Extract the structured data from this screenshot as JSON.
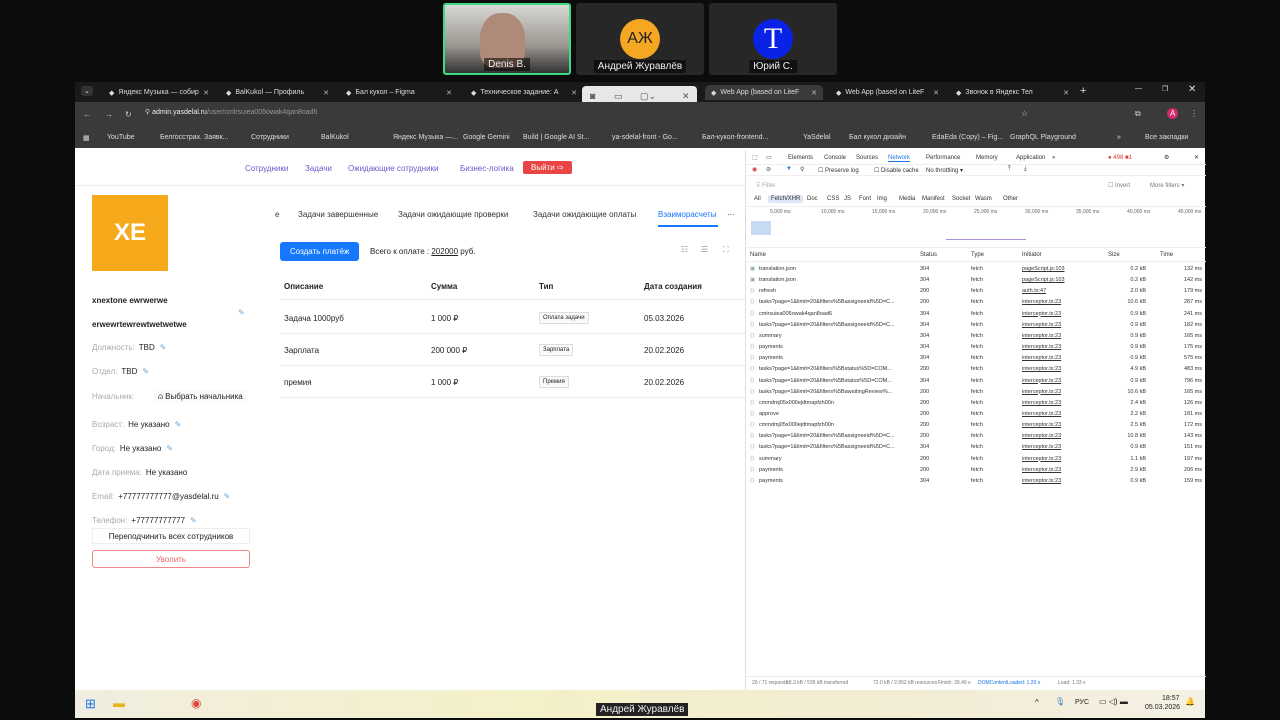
{
  "call": {
    "participants": [
      {
        "name": "Denis B.",
        "initials": ""
      },
      {
        "name": "Андрей Журавлёв",
        "initials": "АЖ",
        "color": "#f5a623"
      },
      {
        "name": "Юрий С.",
        "initials": "T",
        "color": "#0a22e6"
      }
    ],
    "speaker": "Андрей Журавлёв"
  },
  "browser": {
    "tabs": [
      {
        "label": "Яндекс Музыка — собир"
      },
      {
        "label": "BalKukol — Профиль"
      },
      {
        "label": "Бал кукол – Figma"
      },
      {
        "label": "Техническое задание: А"
      },
      {
        "label": "Web App (based on LiteF",
        "active": true
      },
      {
        "label": "Web App (based on LiteF"
      },
      {
        "label": "Звонок в Яндекс Тел"
      }
    ],
    "url_host": "admin.yasdelal.ru",
    "url_path": "/user/cmlrsuiea005owak4qan8oad6",
    "bookmarks": [
      "YouTube",
      "Белгосстрах. Заявк...",
      "Сотрудники",
      "BalKukol",
      "Яндекс Музыка —...",
      "Google Gemini",
      "Build | Google AI St...",
      "ya-sdelal-front - Go...",
      "Бал-кукол-frontend...",
      "YaSdelal",
      "Бал кукол дизайн",
      "EdaEda (Copy) – Fig...",
      "GraphQL Playground",
      "»",
      "Все закладки"
    ],
    "profile_initial": "A"
  },
  "app": {
    "nav": [
      "Сотрудники",
      "Задачи",
      "Ожидающие сотрудники",
      "Бизнес-логика"
    ],
    "logout": "Выйти",
    "avatar_initials": "XE",
    "avatar_color": "#f5a91b",
    "profile": {
      "name1": "xnextone ewrwerwe",
      "name2": "erwewrtewrewtwetwetwe",
      "fields": [
        {
          "label": "Должность:",
          "value": "TBD"
        },
        {
          "label": "Отдел:",
          "value": "TBD"
        },
        {
          "label": "Начальник:",
          "value": "Выбрать начальника"
        },
        {
          "label": "Возраст:",
          "value": "Не указано"
        },
        {
          "label": "Город:",
          "value": "Не указано"
        },
        {
          "label": "Дата приема:",
          "value": "Не указано"
        },
        {
          "label": "Email:",
          "value": "+77777777777@yasdelal.ru"
        },
        {
          "label": "Телефон:",
          "value": "+77777777777"
        }
      ],
      "reassign": "Переподчинить всех сотрудников",
      "fire": "Уволить"
    },
    "tabs": [
      "е",
      "Задачи завершенные",
      "Задачи ожидающие проверки",
      "Задачи ожидающие оплаты",
      "Взаиморасчеты",
      "···"
    ],
    "create_payment": "Создать платёж",
    "total_label": "Всего к оплате :",
    "total_value": "202000",
    "total_unit": "руб.",
    "columns": [
      "Описание",
      "Сумма",
      "Тип",
      "Дата создания"
    ],
    "rows": [
      [
        "Задача 1000руб",
        "1 000 ₽",
        "Оплата задачи",
        "05.03.2026"
      ],
      [
        "Зарплата",
        "200 000 ₽",
        "Зарплата",
        "20.02.2026"
      ],
      [
        "премия",
        "1 000 ₽",
        "Премия",
        "20.02.2026"
      ]
    ]
  },
  "devtools": {
    "tabs": [
      "Elements",
      "Console",
      "Sources",
      "Network",
      "Performance",
      "Memory",
      "Application",
      "»"
    ],
    "errors": "498",
    "warnings": "1",
    "preserve_log": "Preserve log",
    "disable_cache": "Disable cache",
    "throttling": "No throttling",
    "filter_placeholder": "Filter",
    "invert": "Invert",
    "more_filters": "More filters ▾",
    "filters": [
      "All",
      "Fetch/XHR",
      "Doc",
      "CSS",
      "JS",
      "Font",
      "Img",
      "Media",
      "Manifest",
      "Socket",
      "Wasm",
      "Other"
    ],
    "timeline": [
      "5,000 ms",
      "10,000 ms",
      "15,000 ms",
      "20,000 ms",
      "25,000 ms",
      "30,000 ms",
      "35,000 ms",
      "40,000 ms",
      "45,000 ms"
    ],
    "columns": [
      "Name",
      "Status",
      "Type",
      "Initiator",
      "Size",
      "Time"
    ],
    "requests": [
      [
        "translation.json",
        "304",
        "fetch",
        "pageScript.js:103",
        "0.2 kB",
        "132 ms"
      ],
      [
        "translation.json",
        "304",
        "fetch",
        "pageScript.js:103",
        "0.2 kB",
        "142 ms"
      ],
      [
        "refresh",
        "200",
        "fetch",
        "auth.ts:47",
        "2.0 kB",
        "179 ms"
      ],
      [
        "tasks?page=1&limit=20&filters%5Bassigneeid%5D=C...",
        "200",
        "fetch",
        "interceptor.ts:23",
        "10.6 kB",
        "287 ms"
      ],
      [
        "cmirsuiea005owak4qan8oad6",
        "304",
        "fetch",
        "interceptor.ts:23",
        "0.9 kB",
        "241 ms"
      ],
      [
        "tasks?page=1&limit=20&filters%5Bassigneeid%5D=C...",
        "304",
        "fetch",
        "interceptor.ts:23",
        "0.9 kB",
        "182 ms"
      ],
      [
        "summary",
        "304",
        "fetch",
        "interceptor.ts:23",
        "0.9 kB",
        "165 ms"
      ],
      [
        "payments",
        "304",
        "fetch",
        "interceptor.ts:23",
        "0.9 kB",
        "175 ms"
      ],
      [
        "payments",
        "304",
        "fetch",
        "interceptor.ts:23",
        "0.9 kB",
        "575 ms"
      ],
      [
        "tasks?page=1&limit=20&filters%5Bstatus%5D=COM...",
        "200",
        "fetch",
        "interceptor.ts:23",
        "4.9 kB",
        "483 ms"
      ],
      [
        "tasks?page=1&limit=20&filters%5Bstatus%5D=COM...",
        "304",
        "fetch",
        "interceptor.ts:23",
        "0.9 kB",
        "796 ms"
      ],
      [
        "tasks?page=1&limit=20&filters%5BawaitingReview%...",
        "200",
        "fetch",
        "interceptor.ts:23",
        "10.6 kB",
        "165 ms"
      ],
      [
        "cmmdmj05x000ejdtmapfzh00n",
        "200",
        "fetch",
        "interceptor.ts:23",
        "2.4 kB",
        "126 ms"
      ],
      [
        "approve",
        "200",
        "fetch",
        "interceptor.ts:23",
        "2.2 kB",
        "181 ms"
      ],
      [
        "cmmdmj05x000ejdtmapfzh00n",
        "200",
        "fetch",
        "interceptor.ts:23",
        "2.5 kB",
        "172 ms"
      ],
      [
        "tasks?page=1&limit=20&filters%5Bassigneeid%5D=C...",
        "200",
        "fetch",
        "interceptor.ts:23",
        "10.8 kB",
        "143 ms"
      ],
      [
        "tasks?page=1&limit=20&filters%5Bassigneeid%5D=C...",
        "304",
        "fetch",
        "interceptor.ts:23",
        "0.9 kB",
        "151 ms"
      ],
      [
        "summary",
        "200",
        "fetch",
        "interceptor.ts:23",
        "1.1 kB",
        "197 ms"
      ],
      [
        "payments",
        "200",
        "fetch",
        "interceptor.ts:23",
        "2.9 kB",
        "206 ms"
      ],
      [
        "payments",
        "304",
        "fetch",
        "interceptor.ts:23",
        "0.9 kB",
        "159 ms"
      ]
    ],
    "status_bar": [
      "20 / 71 requests",
      "58.3 kB / 539 kB transferred",
      "72.0 kB / 2,952 kB resources",
      "Finish: 39.49 s",
      "DOMContentLoaded: 1.20 s",
      "Load: 1.33 s"
    ]
  },
  "taskbar": {
    "lang": "РУС",
    "time": "18:57",
    "date": "05.03.2026"
  }
}
